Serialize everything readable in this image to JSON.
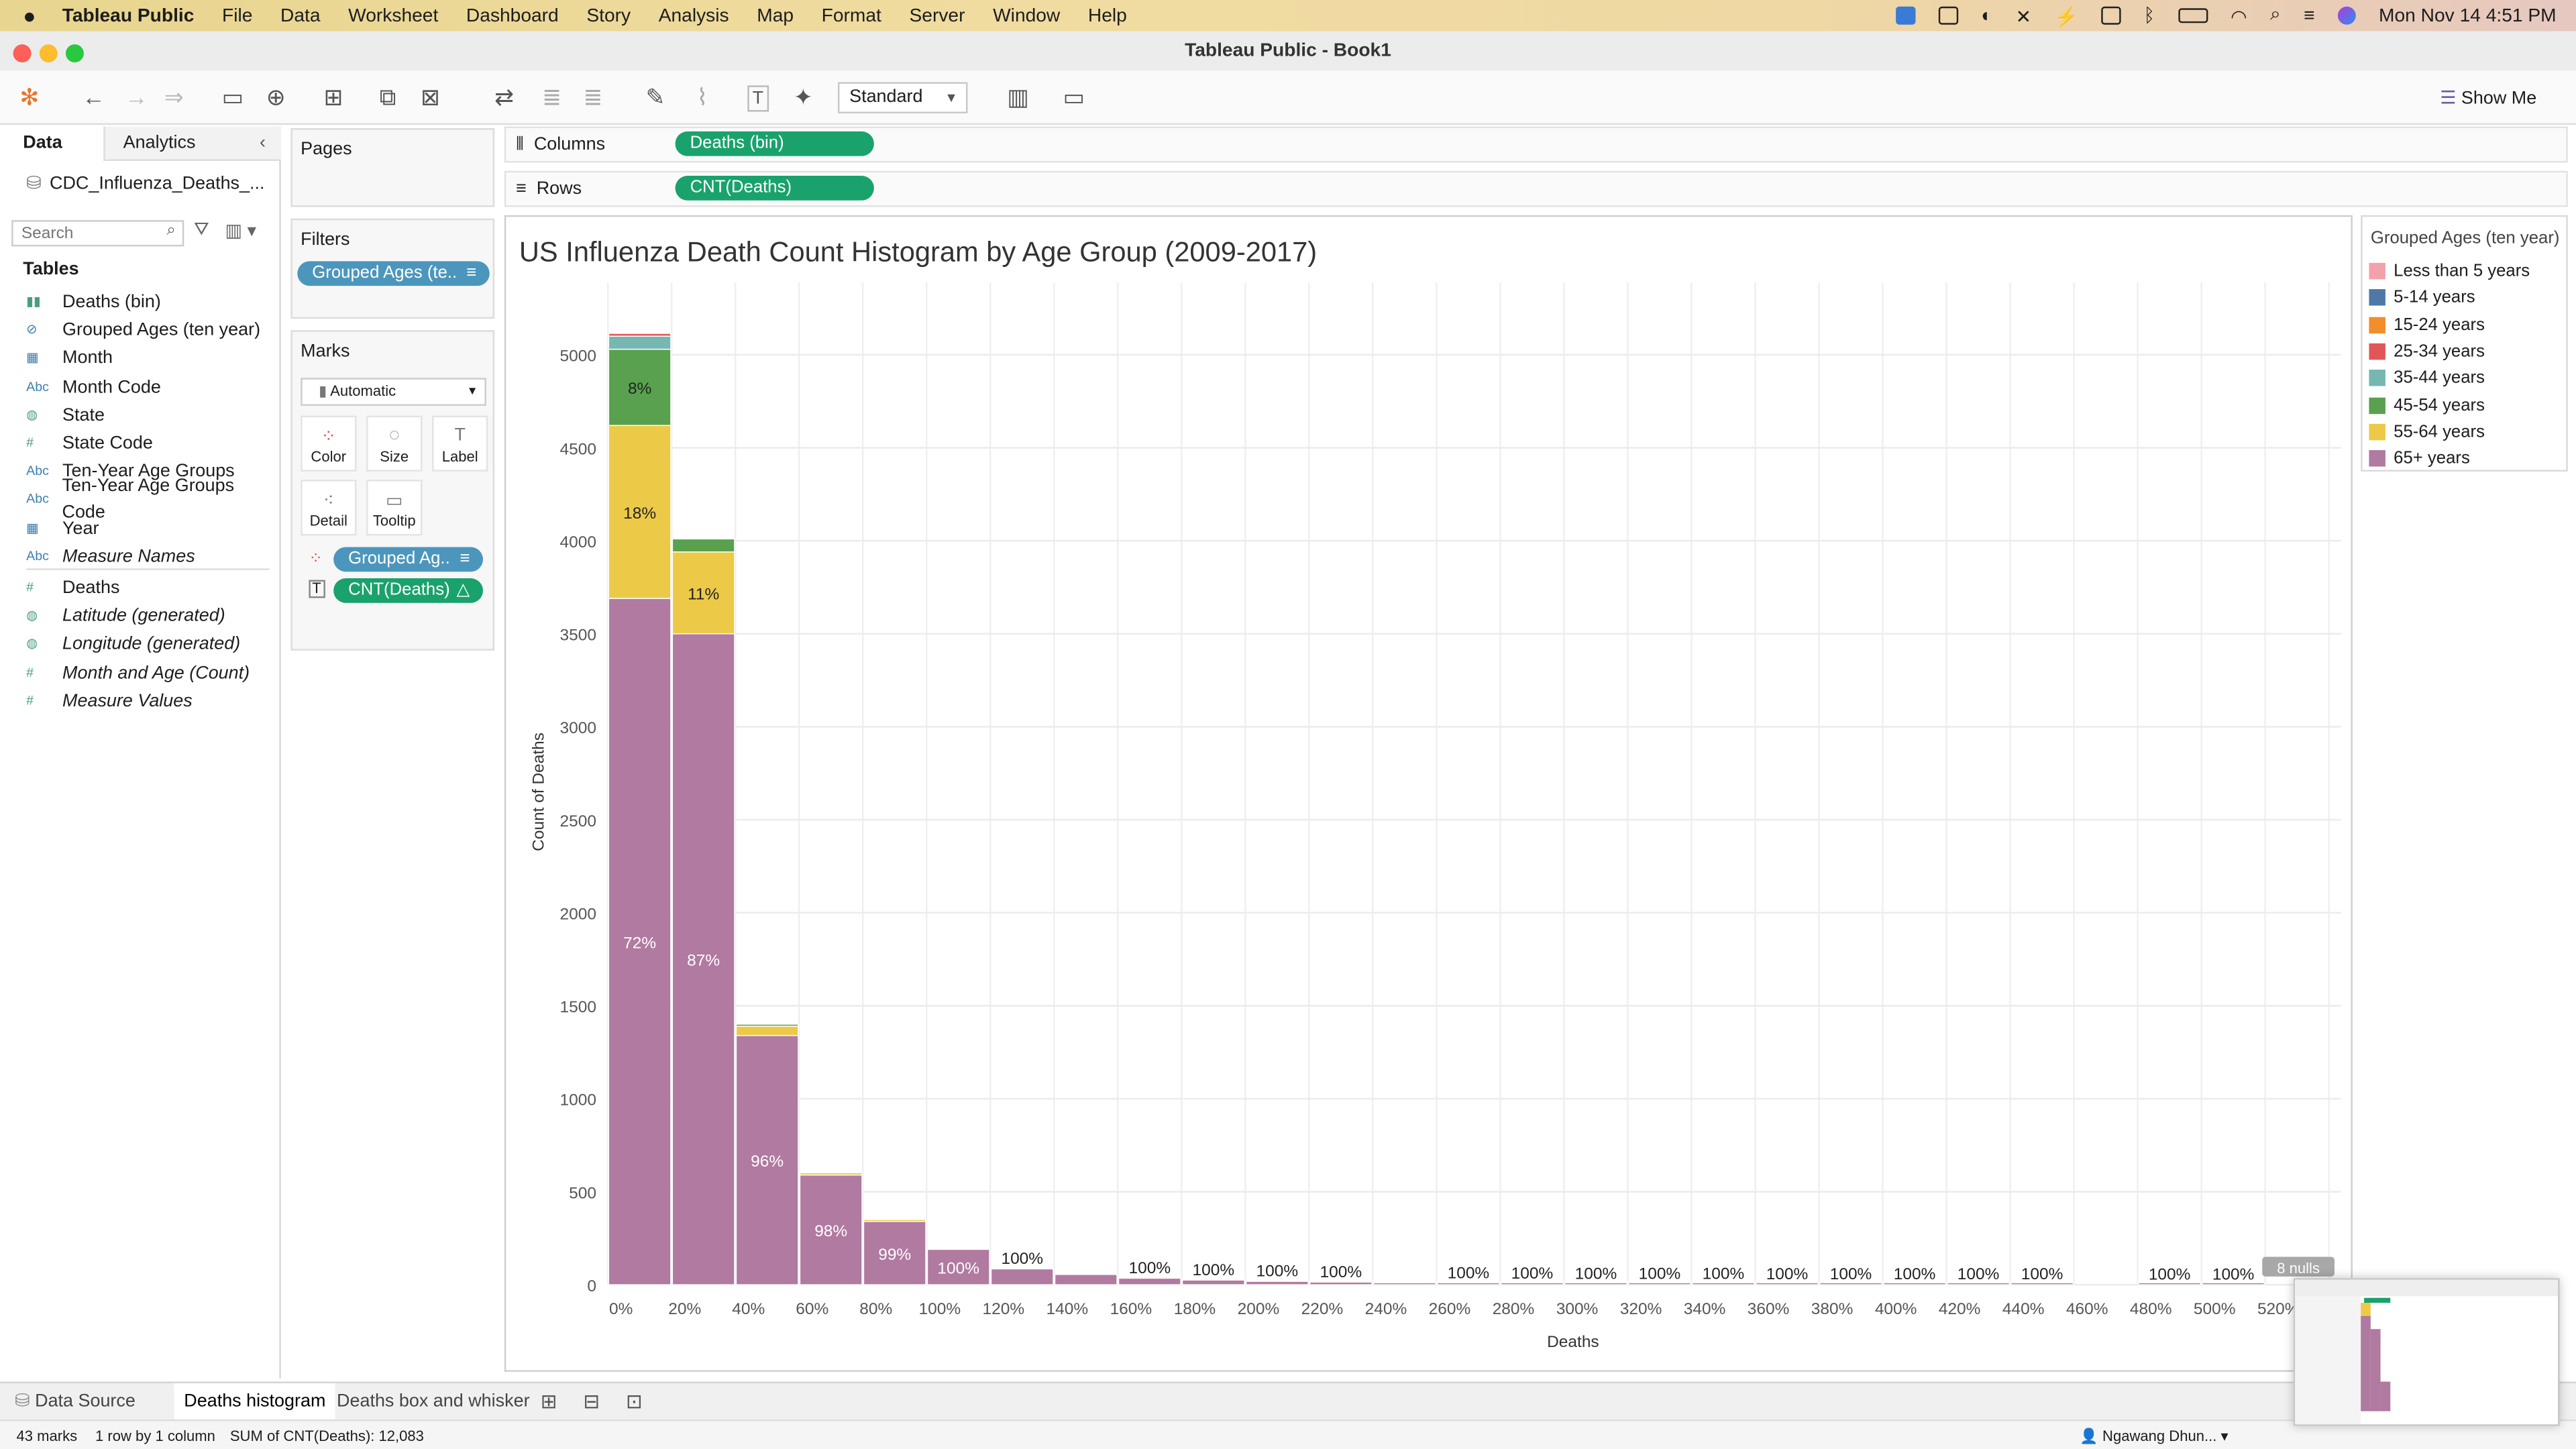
{
  "menubar": {
    "app": "Tableau Public",
    "items": [
      "File",
      "Data",
      "Worksheet",
      "Dashboard",
      "Story",
      "Analysis",
      "Map",
      "Format",
      "Server",
      "Window",
      "Help"
    ],
    "clock": "Mon Nov 14  4:51 PM"
  },
  "window": {
    "title": "Tableau Public - Book1"
  },
  "toolbar": {
    "mark_size": "Standard",
    "show_me": "Show Me"
  },
  "left_panel": {
    "tabs": [
      "Data",
      "Analytics"
    ],
    "datasource": "CDC_Influenza_Deaths_...",
    "search_placeholder": "Search",
    "tables_label": "Tables",
    "fields": [
      {
        "label": "Deaths (bin)",
        "icon": "bin-icon"
      },
      {
        "label": "Grouped Ages (ten year)",
        "icon": "paperclip-icon"
      },
      {
        "label": "Month",
        "icon": "calendar-icon"
      },
      {
        "label": "Month Code",
        "icon": "abc-icon"
      },
      {
        "label": "State",
        "icon": "globe-icon"
      },
      {
        "label": "State Code",
        "icon": "hash-icon"
      },
      {
        "label": "Ten-Year Age Groups",
        "icon": "abc-icon"
      },
      {
        "label": "Ten-Year Age Groups Code",
        "icon": "abc-icon"
      },
      {
        "label": "Year",
        "icon": "calendar-icon"
      },
      {
        "label": "Measure Names",
        "icon": "abc-icon"
      },
      {
        "label": "Deaths",
        "icon": "hash-icon"
      },
      {
        "label": "Latitude (generated)",
        "icon": "globe-icon"
      },
      {
        "label": "Longitude (generated)",
        "icon": "globe-icon"
      },
      {
        "label": "Month and Age (Count)",
        "icon": "hash-icon"
      },
      {
        "label": "Measure Values",
        "icon": "hash-icon"
      }
    ]
  },
  "cards": {
    "pages": "Pages",
    "filters": "Filters",
    "filter_pill": "Grouped Ages (te..",
    "marks": "Marks",
    "mark_type": "Automatic",
    "buttons": [
      "Color",
      "Size",
      "Label",
      "Detail",
      "Tooltip"
    ],
    "mark_pills": [
      "Grouped Ag..",
      "CNT(Deaths)"
    ]
  },
  "shelves": {
    "columns_label": "Columns",
    "columns_pill": "Deaths (bin)",
    "rows_label": "Rows",
    "rows_pill": "CNT(Deaths)"
  },
  "legend": {
    "title": "Grouped Ages (ten year)",
    "items": [
      {
        "label": "Less than 5 years",
        "color": "#f3a2ab"
      },
      {
        "label": "5-14 years",
        "color": "#4e79a7"
      },
      {
        "label": "15-24 years",
        "color": "#f28e2b"
      },
      {
        "label": "25-34 years",
        "color": "#e15759"
      },
      {
        "label": "35-44 years",
        "color": "#76b7b2"
      },
      {
        "label": "45-54 years",
        "color": "#59a14f"
      },
      {
        "label": "55-64 years",
        "color": "#edc948"
      },
      {
        "label": "65+ years",
        "color": "#b07aa1"
      }
    ]
  },
  "chart_data": {
    "type": "bar",
    "title": "US Influenza Death Count Histogram by Age Group (2009-2017)",
    "xlabel": "Deaths",
    "ylabel": "Count of Deaths",
    "ylim": [
      0,
      5300
    ],
    "yticks": [
      0,
      500,
      1000,
      1500,
      2000,
      2500,
      3000,
      3500,
      4000,
      4500,
      5000
    ],
    "xticks": [
      "0%",
      "20%",
      "40%",
      "60%",
      "80%",
      "100%",
      "120%",
      "140%",
      "160%",
      "180%",
      "200%",
      "220%",
      "240%",
      "260%",
      "280%",
      "300%",
      "320%",
      "340%",
      "360%",
      "380%",
      "400%",
      "420%",
      "440%",
      "460%",
      "480%",
      "500%",
      "520%"
    ],
    "grid": true,
    "stacked": true,
    "bars": [
      {
        "bin": 0,
        "segments": [
          {
            "series": "65+ years",
            "value": 3690,
            "label": "72%"
          },
          {
            "series": "55-64 years",
            "value": 930,
            "label": "18%"
          },
          {
            "series": "45-54 years",
            "value": 410,
            "label": "8%"
          },
          {
            "series": "35-44 years",
            "value": 70
          },
          {
            "series": "25-34 years",
            "value": 15
          }
        ]
      },
      {
        "bin": 1,
        "segments": [
          {
            "series": "65+ years",
            "value": 3500,
            "label": "87%"
          },
          {
            "series": "55-64 years",
            "value": 440,
            "label": "11%"
          },
          {
            "series": "45-54 years",
            "value": 70
          }
        ]
      },
      {
        "bin": 2,
        "segments": [
          {
            "series": "65+ years",
            "value": 1340,
            "label": "96%"
          },
          {
            "series": "55-64 years",
            "value": 50
          },
          {
            "series": "45-54 years",
            "value": 10
          }
        ]
      },
      {
        "bin": 3,
        "segments": [
          {
            "series": "65+ years",
            "value": 590,
            "label": "98%"
          },
          {
            "series": "55-64 years",
            "value": 12
          }
        ]
      },
      {
        "bin": 4,
        "segments": [
          {
            "series": "65+ years",
            "value": 340,
            "label": "99%"
          },
          {
            "series": "55-64 years",
            "value": 4
          }
        ]
      },
      {
        "bin": 5,
        "segments": [
          {
            "series": "65+ years",
            "value": 190,
            "label": "100%"
          }
        ]
      },
      {
        "bin": 6,
        "segments": [
          {
            "series": "65+ years",
            "value": 85,
            "label": "100%"
          }
        ]
      },
      {
        "bin": 7,
        "segments": [
          {
            "series": "65+ years",
            "value": 55
          }
        ]
      },
      {
        "bin": 8,
        "segments": [
          {
            "series": "65+ years",
            "value": 35,
            "label": "100%"
          }
        ]
      },
      {
        "bin": 9,
        "segments": [
          {
            "series": "65+ years",
            "value": 25,
            "label": "100%"
          }
        ]
      },
      {
        "bin": 10,
        "segments": [
          {
            "series": "65+ years",
            "value": 18,
            "label": "100%"
          }
        ]
      },
      {
        "bin": 11,
        "segments": [
          {
            "series": "65+ years",
            "value": 14,
            "label": "100%"
          }
        ]
      },
      {
        "bin": 12,
        "segments": [
          {
            "series": "65+ years",
            "value": 10
          }
        ]
      },
      {
        "bin": 13,
        "segments": [
          {
            "series": "65+ years",
            "value": 8,
            "label": "100%"
          }
        ]
      },
      {
        "bin": 14,
        "segments": [
          {
            "series": "65+ years",
            "value": 6,
            "label": "100%"
          }
        ]
      },
      {
        "bin": 15,
        "segments": [
          {
            "series": "65+ years",
            "value": 5,
            "label": "100%"
          }
        ]
      },
      {
        "bin": 16,
        "segments": [
          {
            "series": "65+ years",
            "value": 4,
            "label": "100%"
          }
        ]
      },
      {
        "bin": 17,
        "segments": [
          {
            "series": "65+ years",
            "value": 4,
            "label": "100%"
          }
        ]
      },
      {
        "bin": 18,
        "segments": [
          {
            "series": "65+ years",
            "value": 3,
            "label": "100%"
          }
        ]
      },
      {
        "bin": 19,
        "segments": [
          {
            "series": "65+ years",
            "value": 3,
            "label": "100%"
          }
        ]
      },
      {
        "bin": 20,
        "segments": [
          {
            "series": "65+ years",
            "value": 2,
            "label": "100%"
          }
        ]
      },
      {
        "bin": 21,
        "segments": [
          {
            "series": "65+ years",
            "value": 2,
            "label": "100%"
          }
        ]
      },
      {
        "bin": 22,
        "segments": [
          {
            "series": "65+ years",
            "value": 2,
            "label": "100%"
          }
        ]
      },
      {
        "bin": 24,
        "segments": [
          {
            "series": "65+ years",
            "value": 1,
            "label": "100%"
          }
        ]
      },
      {
        "bin": 25,
        "segments": [
          {
            "series": "65+ years",
            "value": 1,
            "label": "100%"
          }
        ]
      }
    ],
    "nulls_badge": "8 nulls"
  },
  "sheets": {
    "data_source": "Data Source",
    "tabs": [
      "Deaths histogram",
      "Deaths box and whisker"
    ]
  },
  "status": {
    "marks": "43 marks",
    "dims": "1 row by 1 column",
    "sum": "SUM of CNT(Deaths): 12,083",
    "user": "Ngawang Dhun..."
  }
}
